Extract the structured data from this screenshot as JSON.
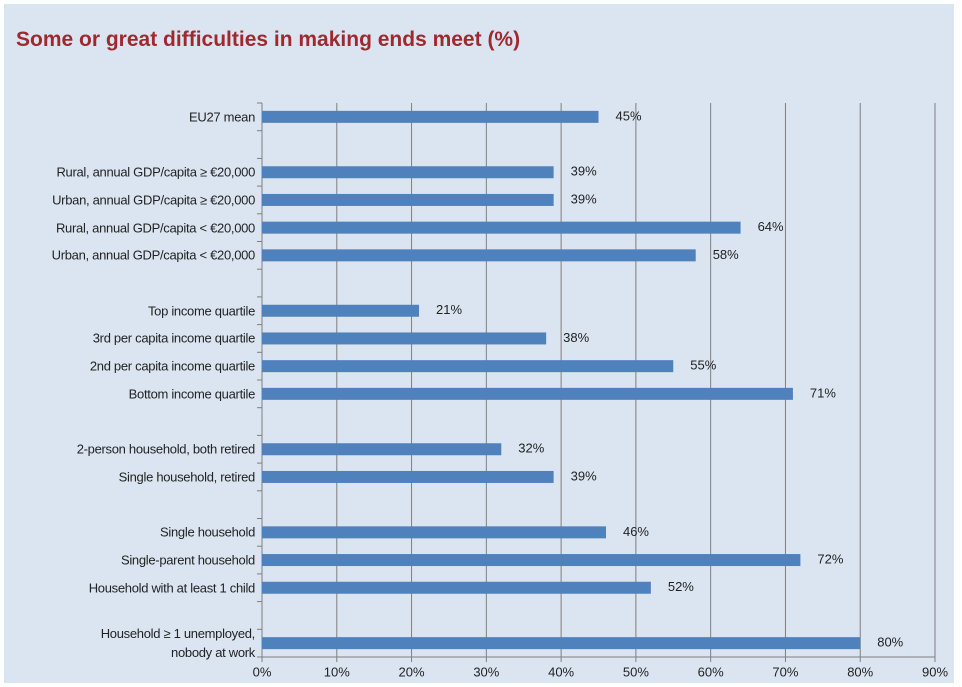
{
  "chart_data": {
    "type": "bar",
    "orientation": "horizontal",
    "title": "Some or great difficulties in making ends meet (%)",
    "categories": [
      "EU27 mean",
      null,
      "Rural, annual GDP/capita ≥ €20,000",
      "Urban, annual GDP/capita ≥ €20,000",
      "Rural, annual GDP/capita < €20,000",
      "Urban, annual GDP/capita < €20,000",
      null,
      "Top income quartile",
      "3rd per capita income quartile",
      "2nd per capita income quartile",
      "Bottom income quartile",
      null,
      "2-person household, both retired",
      "Single household, retired",
      null,
      "Single household",
      "Single-parent household",
      "Household with at least 1 child",
      null,
      "Household ≥ 1 unemployed,\nnobody at work"
    ],
    "values": [
      45,
      null,
      39,
      39,
      64,
      58,
      null,
      21,
      38,
      55,
      71,
      null,
      32,
      39,
      null,
      46,
      72,
      52,
      null,
      80
    ],
    "value_labels": [
      "45%",
      null,
      "39%",
      "39%",
      "64%",
      "58%",
      null,
      "21%",
      "38%",
      "55%",
      "71%",
      null,
      "32%",
      "39%",
      null,
      "46%",
      "72%",
      "52%",
      null,
      "80%"
    ],
    "color": "#4f81bd",
    "xlim": [
      0,
      90
    ],
    "xticks": [
      {
        "value": 0,
        "label": "0%"
      },
      {
        "value": 10,
        "label": "10%"
      },
      {
        "value": 20,
        "label": "20%"
      },
      {
        "value": 30,
        "label": "30%"
      },
      {
        "value": 40,
        "label": "40%"
      },
      {
        "value": 50,
        "label": "50%"
      },
      {
        "value": 60,
        "label": "60%"
      },
      {
        "value": 70,
        "label": "70%"
      },
      {
        "value": 80,
        "label": "80%"
      },
      {
        "value": 90,
        "label": "90%"
      }
    ],
    "grid": true
  }
}
